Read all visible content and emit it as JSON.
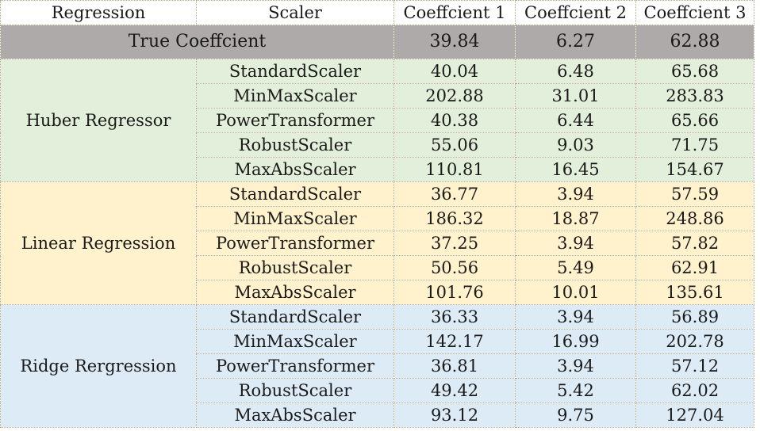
{
  "headers": {
    "regression": "Regression",
    "scaler": "Scaler",
    "coef1": "Coeffcient 1",
    "coef2": "Coeffcient 2",
    "coef3": "Coeffcient 3"
  },
  "true_row": {
    "label": "True Coeffcient",
    "values": [
      "39.84",
      "6.27",
      "62.88"
    ]
  },
  "groups": [
    {
      "name": "Huber Regressor",
      "color": "#e2efda",
      "rows": [
        {
          "scaler": "StandardScaler",
          "values": [
            "40.04",
            "6.48",
            "65.68"
          ]
        },
        {
          "scaler": "MinMaxScaler",
          "values": [
            "202.88",
            "31.01",
            "283.83"
          ]
        },
        {
          "scaler": "PowerTransformer",
          "values": [
            "40.38",
            "6.44",
            "65.66"
          ]
        },
        {
          "scaler": "RobustScaler",
          "values": [
            "55.06",
            "9.03",
            "71.75"
          ]
        },
        {
          "scaler": "MaxAbsScaler",
          "values": [
            "110.81",
            "16.45",
            "154.67"
          ]
        }
      ]
    },
    {
      "name": "Linear Regression",
      "color": "#fff2cc",
      "rows": [
        {
          "scaler": "StandardScaler",
          "values": [
            "36.77",
            "3.94",
            "57.59"
          ]
        },
        {
          "scaler": "MinMaxScaler",
          "values": [
            "186.32",
            "18.87",
            "248.86"
          ]
        },
        {
          "scaler": "PowerTransformer",
          "values": [
            "37.25",
            "3.94",
            "57.82"
          ]
        },
        {
          "scaler": "RobustScaler",
          "values": [
            "50.56",
            "5.49",
            "62.91"
          ]
        },
        {
          "scaler": "MaxAbsScaler",
          "values": [
            "101.76",
            "10.01",
            "135.61"
          ]
        }
      ]
    },
    {
      "name": "Ridge Rergression",
      "color": "#ddebf7",
      "rows": [
        {
          "scaler": "StandardScaler",
          "values": [
            "36.33",
            "3.94",
            "56.89"
          ]
        },
        {
          "scaler": "MinMaxScaler",
          "values": [
            "142.17",
            "16.99",
            "202.78"
          ]
        },
        {
          "scaler": "PowerTransformer",
          "values": [
            "36.81",
            "3.94",
            "57.12"
          ]
        },
        {
          "scaler": "RobustScaler",
          "values": [
            "49.42",
            "5.42",
            "62.02"
          ]
        },
        {
          "scaler": "MaxAbsScaler",
          "values": [
            "93.12",
            "9.75",
            "127.04"
          ]
        }
      ]
    }
  ],
  "colors": {
    "true_row_bg": "#aeaaaa",
    "huber_bg": "#e2efda",
    "linear_bg": "#fff2cc",
    "ridge_bg": "#ddebf7"
  }
}
